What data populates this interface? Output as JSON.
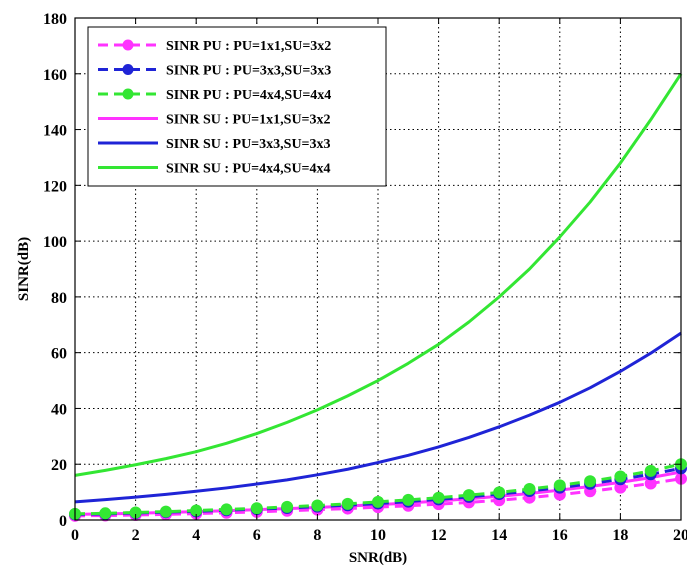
{
  "chart_data": {
    "type": "line",
    "title": "",
    "xlabel": "SNR(dB)",
    "ylabel": "SINR(dB)",
    "xlim": [
      0,
      20
    ],
    "ylim": [
      0,
      180
    ],
    "xticks": [
      0,
      2,
      4,
      6,
      8,
      10,
      12,
      14,
      16,
      18,
      20
    ],
    "yticks": [
      0,
      20,
      40,
      60,
      80,
      100,
      120,
      140,
      160,
      180
    ],
    "grid": true,
    "legend_position": "top-left",
    "x": [
      0,
      1,
      2,
      3,
      4,
      5,
      6,
      7,
      8,
      9,
      10,
      11,
      12,
      13,
      14,
      15,
      16,
      17,
      18,
      19,
      20
    ],
    "series": [
      {
        "name": "SINR PU : PU=1x1,SU=3x2",
        "style": "dashed-marker",
        "color": "#ff33ff",
        "values": [
          1.5,
          1.6,
          1.8,
          2.0,
          2.3,
          2.6,
          2.9,
          3.3,
          3.7,
          4.1,
          4.6,
          5.1,
          5.7,
          6.3,
          7.1,
          8.0,
          9.1,
          10.3,
          11.6,
          13.1,
          14.8
        ]
      },
      {
        "name": "SINR PU : PU=3x3,SU=3x3",
        "style": "dashed-marker",
        "color": "#1f24d6",
        "values": [
          2.0,
          2.2,
          2.5,
          2.8,
          3.1,
          3.5,
          3.9,
          4.3,
          4.8,
          5.3,
          5.9,
          6.6,
          7.4,
          8.3,
          9.3,
          10.4,
          11.6,
          13.0,
          14.6,
          16.4,
          18.5
        ]
      },
      {
        "name": "SINR PU : PU=4x4,SU=4x4",
        "style": "dashed-marker",
        "color": "#33e633",
        "values": [
          2.2,
          2.4,
          2.7,
          3.0,
          3.4,
          3.8,
          4.2,
          4.7,
          5.2,
          5.8,
          6.5,
          7.2,
          8.0,
          8.9,
          9.9,
          11.1,
          12.4,
          13.9,
          15.6,
          17.6,
          20.0
        ]
      },
      {
        "name": "SINR SU : PU=1x1,SU=3x2",
        "style": "solid",
        "color": "#ff33ff",
        "values": [
          2.0,
          2.2,
          2.4,
          2.7,
          3.0,
          3.3,
          3.7,
          4.1,
          4.5,
          5.0,
          5.5,
          6.1,
          6.8,
          7.6,
          8.5,
          9.5,
          10.7,
          12.0,
          13.5,
          15.2,
          17.2
        ]
      },
      {
        "name": "SINR SU : PU=3x3,SU=3x3",
        "style": "solid",
        "color": "#1f24d6",
        "values": [
          6.5,
          7.3,
          8.2,
          9.2,
          10.3,
          11.5,
          12.9,
          14.4,
          16.2,
          18.2,
          20.6,
          23.2,
          26.2,
          29.6,
          33.4,
          37.6,
          42.2,
          47.4,
          53.3,
          59.8,
          67.0
        ]
      },
      {
        "name": "SINR SU : PU=4x4,SU=4x4",
        "style": "solid",
        "color": "#33e633",
        "values": [
          16.0,
          17.8,
          19.8,
          22.0,
          24.5,
          27.5,
          31.0,
          35.0,
          39.5,
          44.5,
          50.0,
          56.2,
          63.0,
          71.0,
          80.0,
          90.0,
          101.5,
          114.0,
          128.0,
          143.5,
          160.0
        ]
      }
    ]
  }
}
